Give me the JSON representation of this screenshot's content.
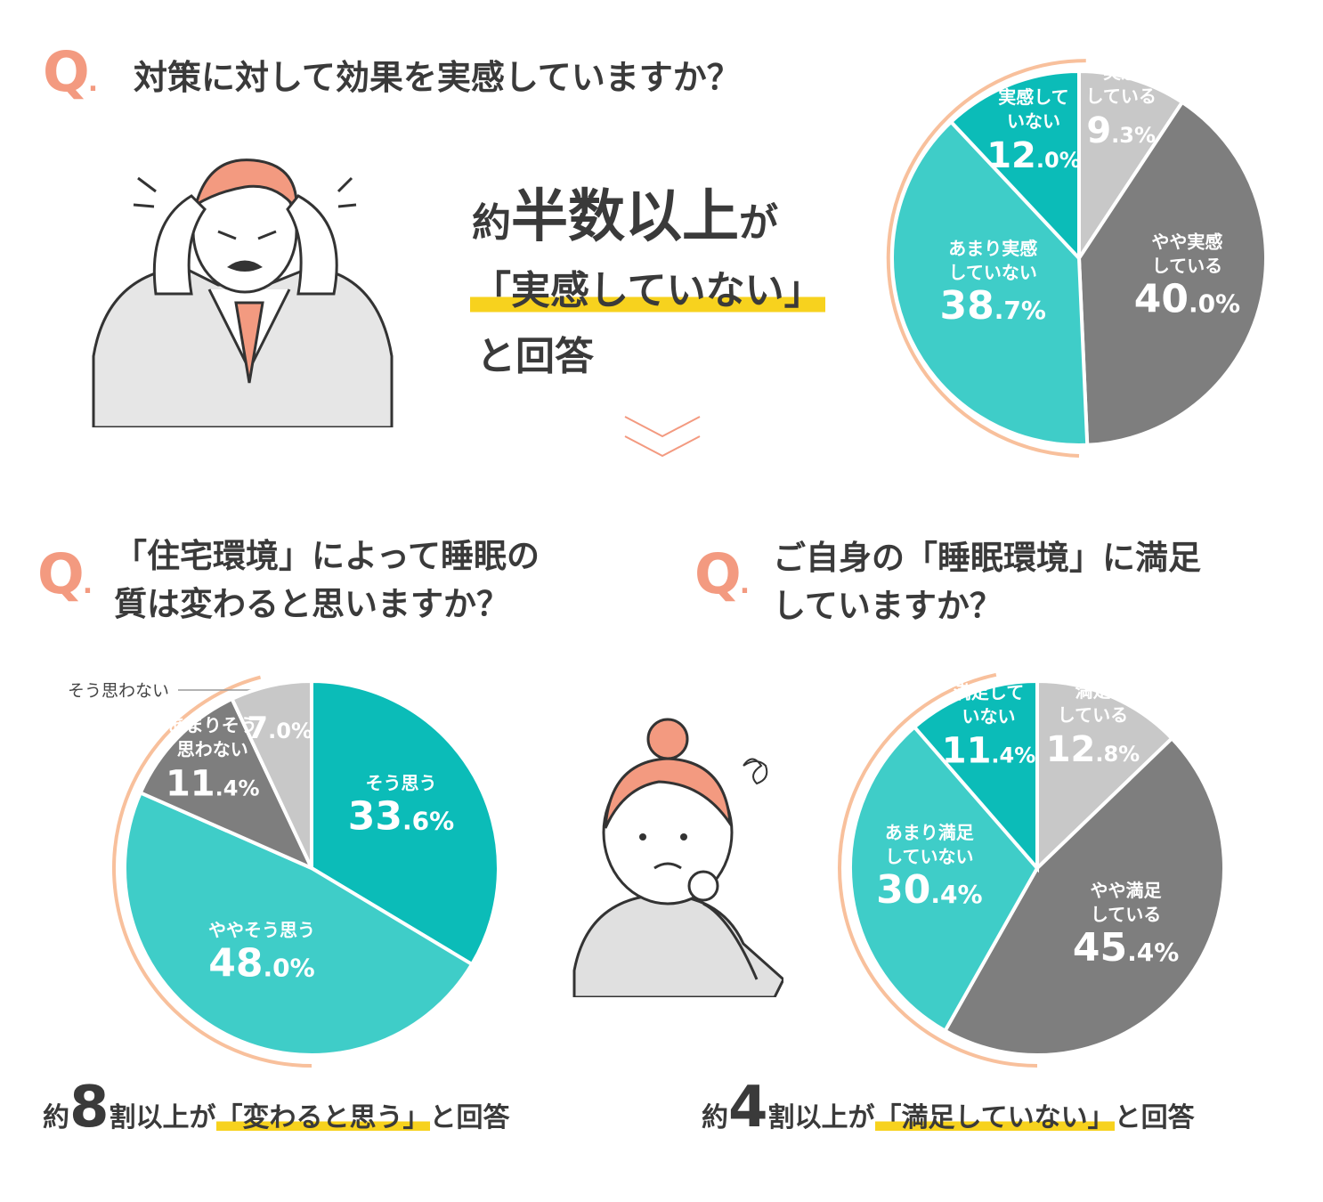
{
  "q1": {
    "mark": "Q",
    "question": "対策に対して効果を実感していますか？",
    "headline": {
      "line1_prefix": "約",
      "line1_emph": "半数以上",
      "line1_suffix": "が",
      "line2": "「実感していない」",
      "line3": "と回答"
    }
  },
  "q2": {
    "mark": "Q",
    "question_line1": "「住宅環境」によって睡眠の",
    "question_line2": "質は変わると思いますか？",
    "summary": {
      "prefix": "約",
      "number": "8",
      "mid": "割以上が",
      "quote": "「変わると思う」",
      "suffix": "と回答"
    }
  },
  "q3": {
    "mark": "Q",
    "question_line1": "ご自身の「睡眠環境」に満足",
    "question_line2": "していますか？",
    "summary": {
      "prefix": "約",
      "number": "4",
      "mid": "割以上が",
      "quote": "「満足していない」",
      "suffix": "と回答"
    }
  },
  "colors": {
    "accent_orange": "#f39a80",
    "ring_orange": "#f8c09c",
    "highlight_yellow": "#f7d21e",
    "teal_dark": "#0bbcb8",
    "teal_light": "#3fcdc8",
    "gray_dark": "#7e7e7e",
    "gray_light": "#c8c8c8"
  },
  "chart_data": [
    {
      "type": "pie",
      "id": "effect",
      "slices": [
        {
          "label": [
            "実感",
            "している"
          ],
          "value": 9.3,
          "int": "9",
          "dec": ".3%",
          "color": "#c8c8c8"
        },
        {
          "label": [
            "やや実感",
            "している"
          ],
          "value": 40.0,
          "int": "40",
          "dec": ".0%",
          "color": "#7e7e7e"
        },
        {
          "label": [
            "あまり実感",
            "していない"
          ],
          "value": 38.7,
          "int": "38",
          "dec": ".7%",
          "color": "#3fcdc8"
        },
        {
          "label": [
            "実感して",
            "いない"
          ],
          "value": 12.0,
          "int": "12",
          "dec": ".0%",
          "color": "#0bbcb8"
        }
      ]
    },
    {
      "type": "pie",
      "id": "housing",
      "slices": [
        {
          "label": [
            "そう思う"
          ],
          "value": 33.6,
          "int": "33",
          "dec": ".6%",
          "color": "#0bbcb8"
        },
        {
          "label": [
            "ややそう思う"
          ],
          "value": 48.0,
          "int": "48",
          "dec": ".0%",
          "color": "#3fcdc8"
        },
        {
          "label": [
            "あまりそう",
            "思わない"
          ],
          "value": 11.4,
          "int": "11",
          "dec": ".4%",
          "color": "#7e7e7e"
        },
        {
          "label": [
            "そう思わない"
          ],
          "value": 7.0,
          "int": "7",
          "dec": ".0%",
          "color": "#c8c8c8"
        }
      ]
    },
    {
      "type": "pie",
      "id": "satisfaction",
      "slices": [
        {
          "label": [
            "満足",
            "している"
          ],
          "value": 12.8,
          "int": "12",
          "dec": ".8%",
          "color": "#c8c8c8"
        },
        {
          "label": [
            "やや満足",
            "している"
          ],
          "value": 45.4,
          "int": "45",
          "dec": ".4%",
          "color": "#7e7e7e"
        },
        {
          "label": [
            "あまり満足",
            "していない"
          ],
          "value": 30.4,
          "int": "30",
          "dec": ".4%",
          "color": "#3fcdc8"
        },
        {
          "label": [
            "満足して",
            "いない"
          ],
          "value": 11.4,
          "int": "11",
          "dec": ".4%",
          "color": "#0bbcb8"
        }
      ]
    }
  ]
}
